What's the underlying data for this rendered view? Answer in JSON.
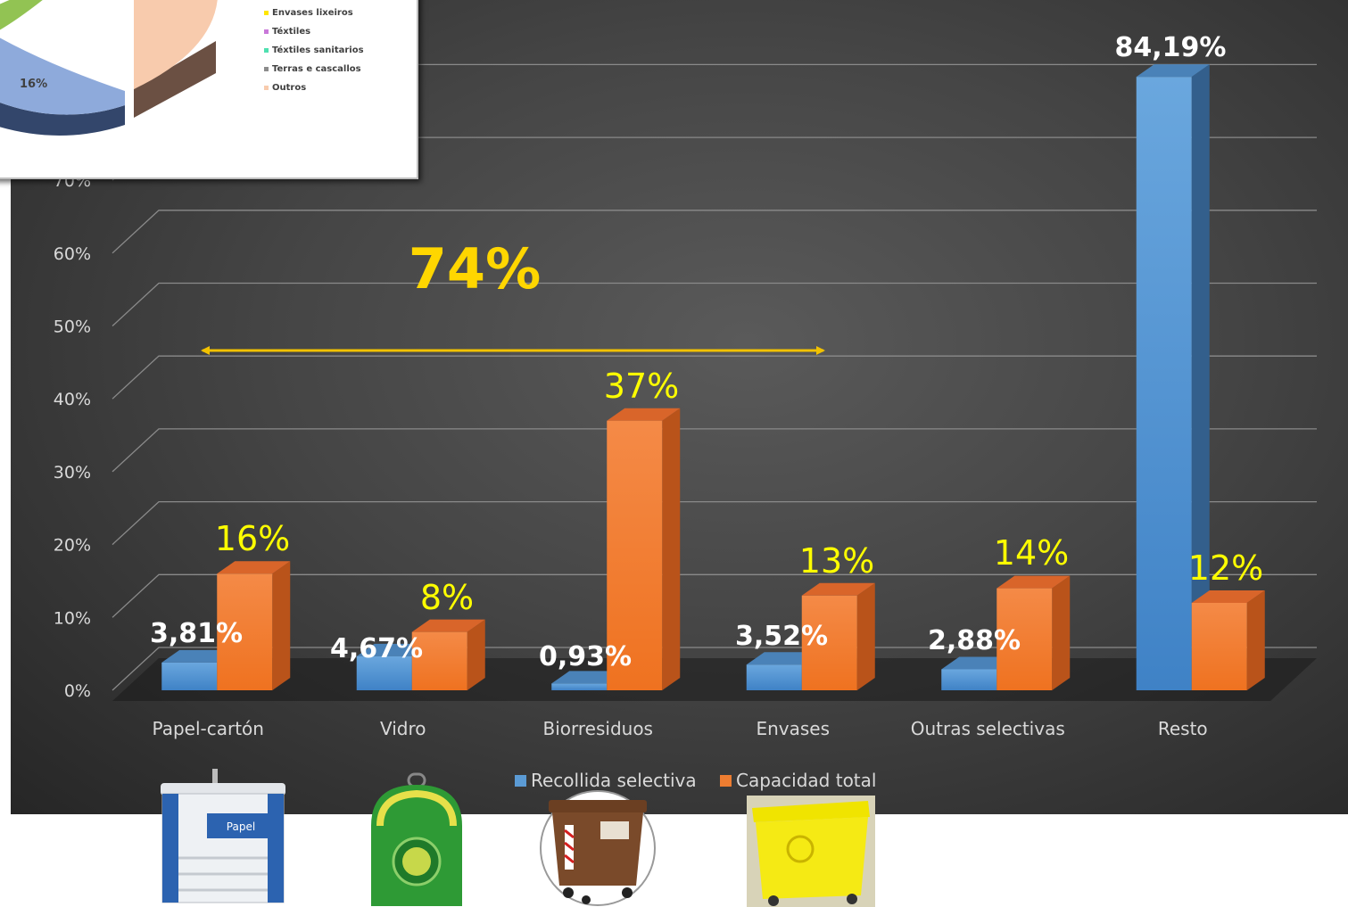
{
  "chart_data": {
    "type": "bar",
    "categories": [
      "Papel-cartón",
      "Vidro",
      "Biorresiduos",
      "Envases",
      "Outras selectivas",
      "Resto"
    ],
    "series": [
      {
        "name": "Recollida selectiva",
        "color": "#5b9bd5",
        "values": [
          3.81,
          4.67,
          0.93,
          3.52,
          2.88,
          84.19
        ],
        "labels": [
          "3,81%",
          "4,67%",
          "0,93%",
          "3,52%",
          "2,88%",
          "84,19%"
        ]
      },
      {
        "name": "Capacidad total",
        "color": "#ed7d31",
        "values": [
          16,
          8,
          37,
          13,
          14,
          12
        ],
        "labels": [
          "16%",
          "8%",
          "37%",
          "13%",
          "14%",
          "12%"
        ]
      }
    ],
    "y_ticks": [
      "0%",
      "10%",
      "20%",
      "30%",
      "40%",
      "50%",
      "60%",
      "70%"
    ],
    "ylim": [
      0,
      90
    ],
    "grid": true,
    "legend_position": "bottom",
    "annotation": "74%"
  },
  "inset": {
    "legend": [
      {
        "label": "Envases lixeiros",
        "color": "#ffe600"
      },
      {
        "label": "Téxtiles",
        "color": "#c978d9"
      },
      {
        "label": "Téxtiles sanitarios",
        "color": "#4fe0b0"
      },
      {
        "label": "Terras e cascallos",
        "color": "#8c8c8c"
      },
      {
        "label": "Outros",
        "color": "#f8cbad"
      }
    ],
    "slice_label": "16%"
  },
  "bins": [
    {
      "icon": "paper-bin-icon",
      "label": "Papel"
    },
    {
      "icon": "glass-bin-icon"
    },
    {
      "icon": "organic-bin-icon"
    },
    {
      "icon": "packaging-bin-icon"
    }
  ]
}
